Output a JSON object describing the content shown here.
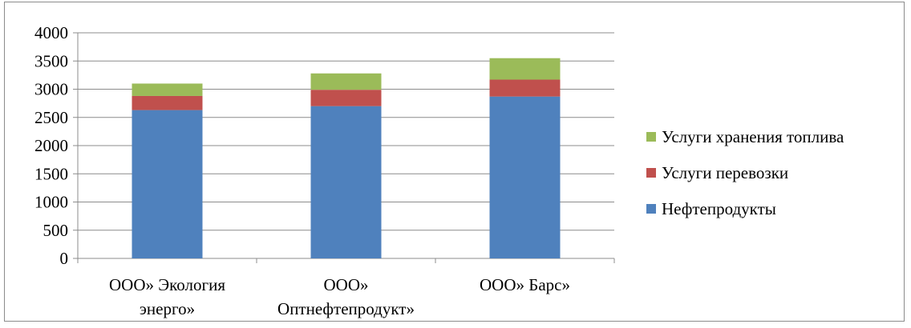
{
  "chart_data": {
    "type": "bar",
    "stacked": true,
    "title": "",
    "xlabel": "",
    "ylabel": "",
    "ylim": [
      0,
      4000
    ],
    "yticks": [
      "0",
      "500",
      "1000",
      "1500",
      "2000",
      "2500",
      "3000",
      "3500",
      "4000"
    ],
    "grid": true,
    "legend_position": "right",
    "categories": [
      [
        "ООО» Экология",
        "энерго»"
      ],
      [
        "ООО»",
        "Оптнефтепродукт»"
      ],
      [
        "ООО» Барс»"
      ]
    ],
    "series": [
      {
        "name": "Нефтепродукты",
        "color": "#4f81bd",
        "values": [
          2630,
          2700,
          2870
        ]
      },
      {
        "name": "Услуги перевозки",
        "color": "#c0504d",
        "values": [
          250,
          290,
          300
        ]
      },
      {
        "name": "Услуги хранения топлива",
        "color": "#9bbb59",
        "values": [
          220,
          290,
          380
        ]
      }
    ],
    "legend_order": [
      "Услуги хранения топлива",
      "Услуги перевозки",
      "Нефтепродукты"
    ]
  }
}
